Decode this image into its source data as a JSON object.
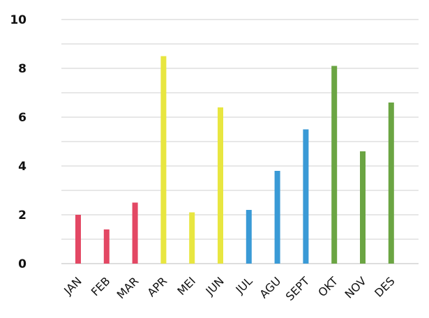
{
  "chart_data": {
    "type": "bar",
    "title": "",
    "xlabel": "",
    "ylabel": "",
    "ylim": [
      0,
      10
    ],
    "yticks": [
      0,
      2,
      4,
      6,
      8,
      10
    ],
    "grid": true,
    "legend": "none",
    "categories": [
      "JAN",
      "FEB",
      "MAR",
      "APR",
      "MEI",
      "JUN",
      "JUL",
      "AGU",
      "SEPT",
      "OKT",
      "NOV",
      "DES"
    ],
    "values": [
      2.0,
      1.4,
      2.5,
      8.5,
      2.1,
      6.4,
      2.2,
      3.8,
      5.5,
      8.1,
      4.6,
      6.6
    ],
    "colors": [
      "#e34864",
      "#e34864",
      "#e34864",
      "#e8e640",
      "#e8e640",
      "#e8e640",
      "#3a9ad6",
      "#3a9ad6",
      "#3a9ad6",
      "#6ba543",
      "#6ba543",
      "#6ba543"
    ]
  }
}
